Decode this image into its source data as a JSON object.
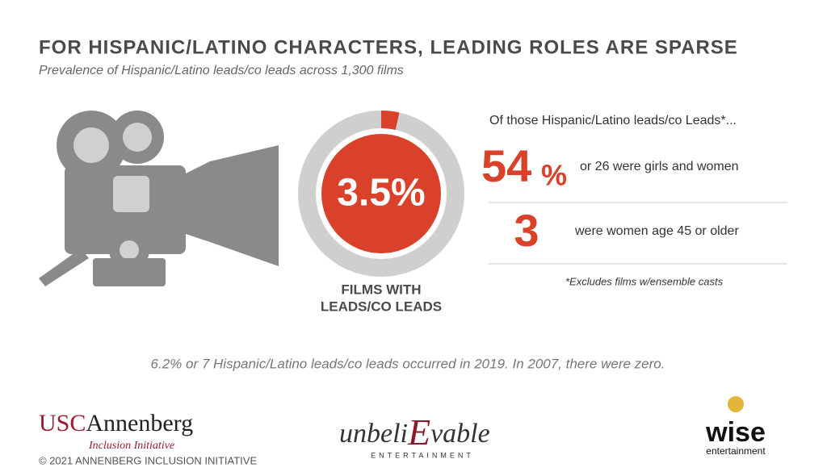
{
  "header": {
    "title": "FOR HISPANIC/LATINO CHARACTERS, LEADING ROLES ARE SPARSE",
    "subtitle": "Prevalence of Hispanic/Latino leads/co leads across 1,300 films"
  },
  "donut": {
    "value": 3.5,
    "label": "3.5%",
    "caption": [
      "FILMS WITH",
      "LEADS/CO LEADS"
    ]
  },
  "breakdown": {
    "heading": "Of those Hispanic/Latino leads/co Leads*...",
    "stats": [
      {
        "number": "54",
        "unit": "%",
        "text": "or 26 were girls and women"
      },
      {
        "number": "3",
        "text": "were women age 45 or older"
      }
    ],
    "footnote": "*Excludes films w/ensemble casts"
  },
  "note": "6.2% or 7 Hispanic/Latino leads/co leads occurred in 2019. In 2007, there were zero.",
  "footer": {
    "usc": {
      "name1": "USC",
      "name2": "Annenberg",
      "sub": "Inclusion Initiative"
    },
    "copyright": "© 2021 ANNENBERG INCLUSION INITIATIVE",
    "unbelievable": {
      "name1": "unbeli",
      "name2": "E",
      "name3": "vable",
      "sub": "ENTERTAINMENT"
    },
    "wise": {
      "name": "wise",
      "sub": "entertainment"
    }
  }
}
